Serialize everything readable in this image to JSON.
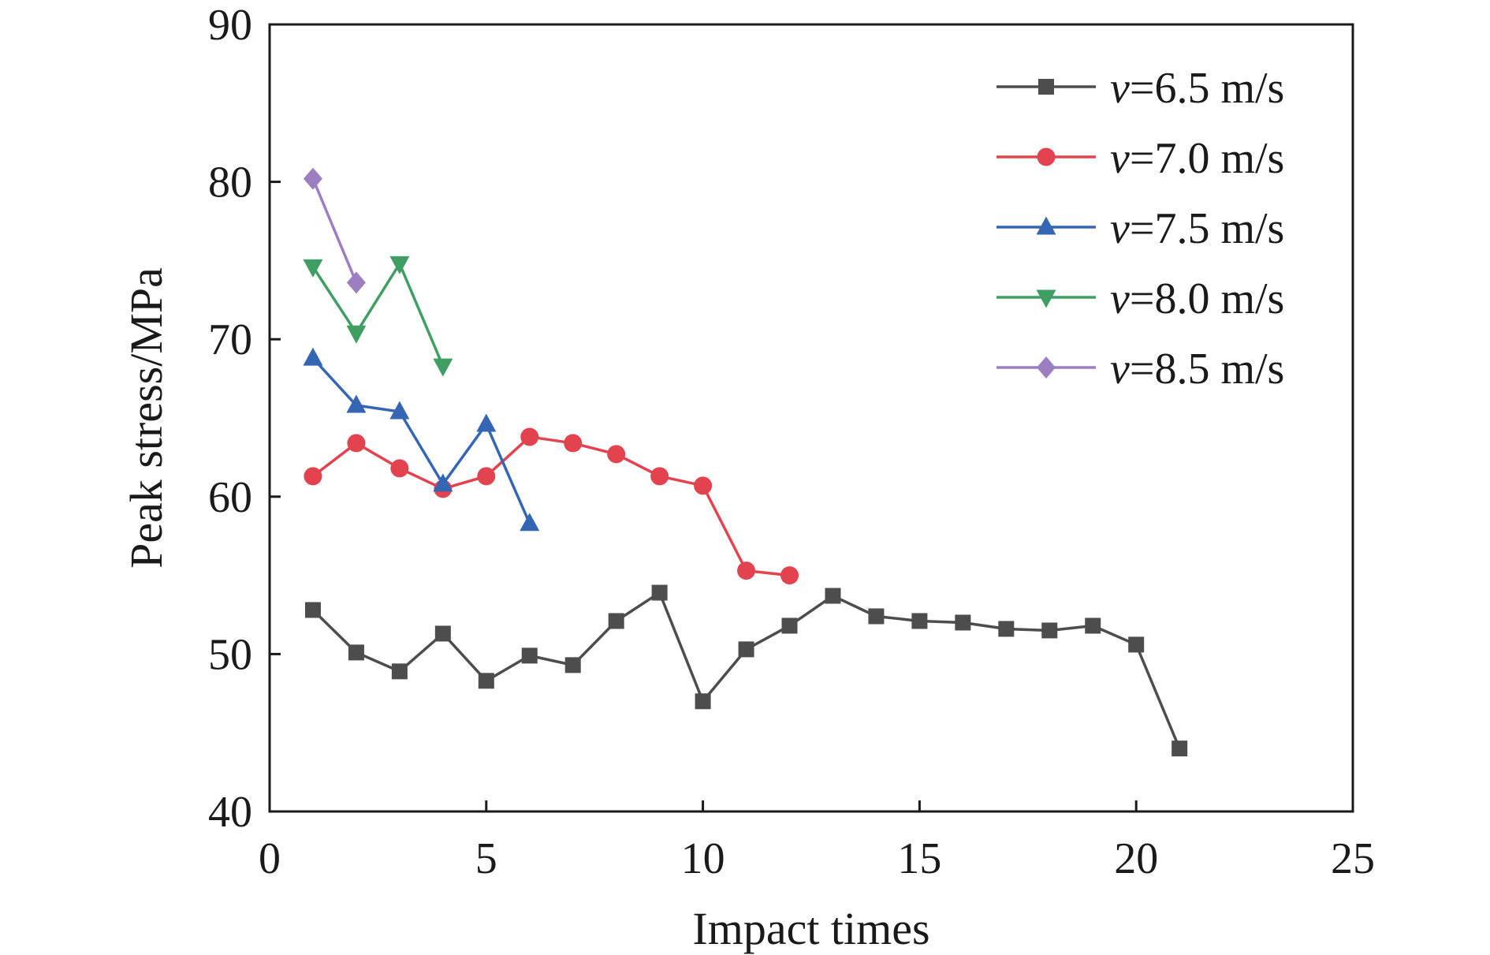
{
  "chart_data": {
    "type": "line",
    "xlabel": "Impact times",
    "ylabel": "Peak stress/MPa",
    "xlim": [
      0,
      25
    ],
    "ylim": [
      40,
      90
    ],
    "xticks": [
      0,
      5,
      10,
      15,
      20,
      25
    ],
    "yticks": [
      40,
      50,
      60,
      70,
      80,
      90
    ],
    "grid": false,
    "legend_position": "top-right",
    "series": [
      {
        "name": "v=6.5 m/s",
        "legend_var": "v",
        "legend_rest": "=6.5 m/s",
        "color": "#4d4d4d",
        "marker": "square",
        "x": [
          1,
          2,
          3,
          4,
          5,
          6,
          7,
          8,
          9,
          10,
          11,
          12,
          13,
          14,
          15,
          16,
          17,
          18,
          19,
          20,
          21
        ],
        "y": [
          52.8,
          50.1,
          48.9,
          51.3,
          48.3,
          49.9,
          49.3,
          52.1,
          53.9,
          47.0,
          50.3,
          51.8,
          53.7,
          52.4,
          52.1,
          52.0,
          51.6,
          51.5,
          51.8,
          50.6,
          44.0
        ]
      },
      {
        "name": "v=7.0 m/s",
        "legend_var": "v",
        "legend_rest": "=7.0 m/s",
        "color": "#e2434f",
        "marker": "circle",
        "x": [
          1,
          2,
          3,
          4,
          5,
          6,
          7,
          8,
          9,
          10,
          11,
          12
        ],
        "y": [
          61.3,
          63.4,
          61.8,
          60.5,
          61.3,
          63.8,
          63.4,
          62.7,
          61.3,
          60.7,
          55.3,
          55.0
        ]
      },
      {
        "name": "v=7.5 m/s",
        "legend_var": "v",
        "legend_rest": "=7.5 m/s",
        "color": "#3466b4",
        "marker": "triangle-up",
        "x": [
          1,
          2,
          3,
          4,
          5,
          6
        ],
        "y": [
          68.8,
          65.8,
          65.4,
          60.8,
          64.6,
          58.3
        ]
      },
      {
        "name": "v=8.0 m/s",
        "legend_var": "v",
        "legend_rest": "=8.0 m/s",
        "color": "#3f9e62",
        "marker": "triangle-down",
        "x": [
          1,
          2,
          3,
          4
        ],
        "y": [
          74.6,
          70.4,
          74.8,
          68.3
        ]
      },
      {
        "name": "v=8.5 m/s",
        "legend_var": "v",
        "legend_rest": "=8.5 m/s",
        "color": "#9b7fc0",
        "marker": "diamond",
        "x": [
          1,
          2
        ],
        "y": [
          80.2,
          73.6
        ]
      }
    ]
  }
}
